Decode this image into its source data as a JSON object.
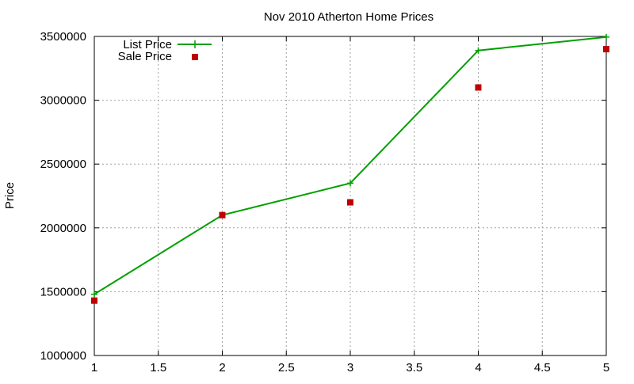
{
  "chart_data": {
    "type": "line",
    "title": "Nov 2010 Atherton Home Prices",
    "xlabel": "",
    "ylabel": "Price",
    "xlim": [
      1,
      5
    ],
    "ylim": [
      1000000,
      3500000
    ],
    "x_ticks": [
      1,
      1.5,
      2,
      2.5,
      3,
      3.5,
      4,
      4.5,
      5
    ],
    "x_tick_labels": [
      "1",
      "1.5",
      "2",
      "2.5",
      "3",
      "3.5",
      "4",
      "4.5",
      "5"
    ],
    "y_ticks": [
      1000000,
      1500000,
      2000000,
      2500000,
      3000000,
      3500000
    ],
    "y_tick_labels": [
      "1000000",
      "1500000",
      "2000000",
      "2500000",
      "3000000",
      "3500000"
    ],
    "grid": true,
    "legend_position": "top-left",
    "series": [
      {
        "name": "List Price",
        "style": "line-with-plus-markers",
        "color": "#00a000",
        "x": [
          1,
          2,
          3,
          4,
          5
        ],
        "y": [
          1480000,
          2100000,
          2350000,
          3390000,
          3495000
        ]
      },
      {
        "name": "Sale Price",
        "style": "square-markers",
        "color": "#c00000",
        "x": [
          1,
          2,
          3,
          4,
          5
        ],
        "y": [
          1430000,
          2100000,
          2200000,
          3100000,
          3400000
        ]
      }
    ]
  }
}
